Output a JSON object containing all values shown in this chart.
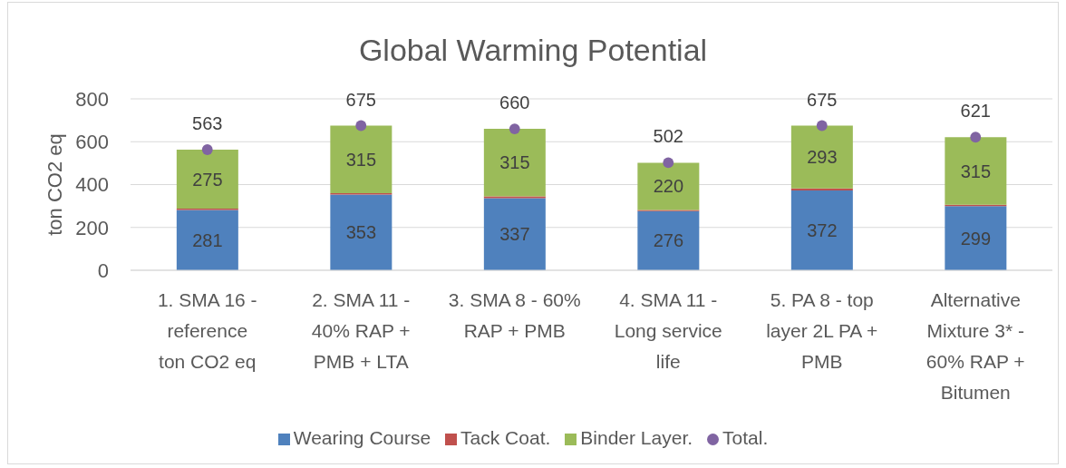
{
  "chart_data": {
    "type": "bar",
    "title": "Global Warming Potential",
    "ylabel": "ton CO2 eq",
    "categories": [
      "1. SMA 16 -\nreference\nton CO2 eq",
      "2. SMA 11 -\n40% RAP +\nPMB + LTA",
      "3. SMA 8 - 60%\nRAP + PMB",
      "4. SMA 11 -\nLong service\nlife",
      "5. PA 8 - top\nlayer 2L PA +\nPMB",
      "Alternative\nMixture 3* -\n60% RAP +\nBitumen"
    ],
    "stacked": true,
    "series": [
      {
        "name": "Wearing Course",
        "color": "#4f81bd",
        "values": [
          281,
          353,
          337,
          276,
          372,
          299
        ],
        "value_labels": [
          "281",
          "353",
          "337",
          "276",
          "372",
          "299"
        ]
      },
      {
        "name": "Tack Coat.",
        "color": "#c0504d",
        "values": [
          7,
          7,
          8,
          6,
          10,
          7
        ]
      },
      {
        "name": "Binder Layer.",
        "color": "#9bbb59",
        "values": [
          275,
          315,
          315,
          220,
          293,
          315
        ],
        "value_labels": [
          "275",
          "315",
          "315",
          "220",
          "293",
          "315"
        ]
      },
      {
        "name": "Total.",
        "type": "scatter",
        "color": "#8064a2",
        "values": [
          563,
          675,
          660,
          502,
          675,
          621
        ],
        "value_labels": [
          "563",
          "675",
          "660",
          "502",
          "675",
          "621"
        ]
      }
    ],
    "ylim": [
      0,
      800
    ],
    "yticks": [
      0,
      200,
      400,
      600,
      800
    ],
    "grid": "y",
    "legend": "bottom",
    "marker": "circle"
  }
}
